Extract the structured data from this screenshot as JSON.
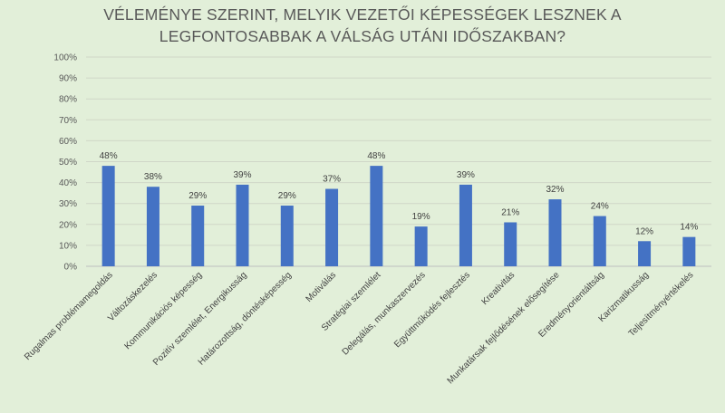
{
  "chart_data": {
    "type": "bar",
    "title_lines": [
      "VÉLEMÉNYE SZERINT, MELYIK VEZETŐI KÉPESSÉGEK LESZNEK A",
      "LEGFONTOSABBAK A VÁLSÁG UTÁNI IDŐSZAKBAN?"
    ],
    "categories": [
      "Rugalmas problémamegoldás",
      "Változáskezelés",
      "Kommunikációs képesség",
      "Pozitív szemlélet, Energikusság",
      "Határozottság, döntésképesség",
      "Motiválás",
      "Stratégiai szemlélet",
      "Delegálás, munkaszervezés",
      "Együttműködés fejlesztés",
      "Kreativitás",
      "Munkatársak fejlődésének elősegítése",
      "Eredményorientáltság",
      "Karizmatikusság",
      "Teljesítményértékelés"
    ],
    "values": [
      48,
      38,
      29,
      39,
      29,
      37,
      48,
      19,
      39,
      21,
      32,
      24,
      12,
      14
    ],
    "data_labels": [
      "48%",
      "38%",
      "29%",
      "39%",
      "29%",
      "37%",
      "48%",
      "19%",
      "39%",
      "21%",
      "32%",
      "24%",
      "12%",
      "14%"
    ],
    "ylim": [
      0,
      100
    ],
    "yticks": [
      "0%",
      "10%",
      "20%",
      "30%",
      "40%",
      "50%",
      "60%",
      "70%",
      "80%",
      "90%",
      "100%"
    ],
    "grid": true,
    "bar_color": "#4472c4",
    "grid_color": "#d0d7c8",
    "xlabel": "",
    "ylabel": ""
  }
}
